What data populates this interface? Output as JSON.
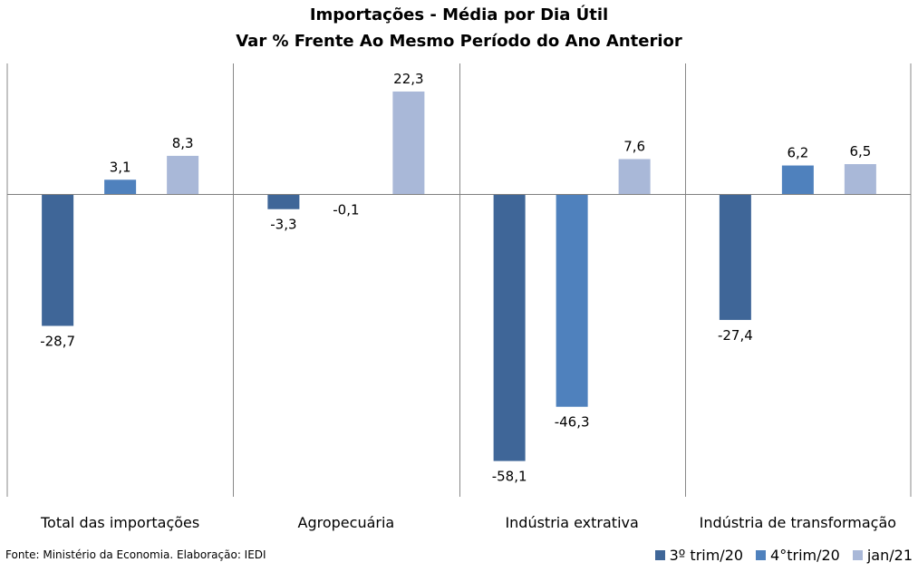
{
  "chart_data": {
    "type": "bar",
    "title": "Importações - Média por Dia Útil",
    "subtitle": "Var % Frente Ao Mesmo Período do Ano Anterior",
    "categories": [
      "Total das importações",
      "Agropecuária",
      "Indústria extrativa",
      "Indústria de transformação"
    ],
    "series": [
      {
        "name": "3º trim/20",
        "color": "#3F6698",
        "values": [
          -28.7,
          -3.3,
          -58.1,
          -27.4
        ],
        "labels": [
          "-28,7",
          "-3,3",
          "-58,1",
          "-27,4"
        ]
      },
      {
        "name": "4°trim/20",
        "color": "#4F81BD",
        "values": [
          3.1,
          -0.1,
          -46.3,
          6.2
        ],
        "labels": [
          "3,1",
          "-0,1",
          "-46,3",
          "6,2"
        ]
      },
      {
        "name": "jan/21",
        "color": "#A9B8D8",
        "values": [
          8.3,
          22.3,
          7.6,
          6.5
        ],
        "labels": [
          "8,3",
          "22,3",
          "7,6",
          "6,5"
        ]
      }
    ],
    "ylim": [
      -64,
      30
    ],
    "grid": false,
    "legend": "bottom-right"
  },
  "source": "Fonte: Ministério da Economia. Elaboração: IEDI"
}
